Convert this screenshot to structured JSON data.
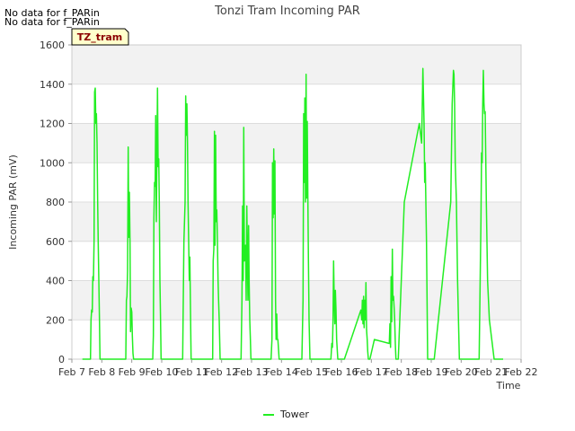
{
  "notes": [
    "No data for f_PARin",
    "No data for f_PARin"
  ],
  "badge": "TZ_tram",
  "chart_data": {
    "type": "line",
    "title": "Tonzi Tram Incoming PAR",
    "xlabel": "Time",
    "ylabel": "Incoming PAR (mV)",
    "xlim": [
      7,
      22
    ],
    "ylim": [
      0,
      1600
    ],
    "xticks": [
      7,
      8,
      9,
      10,
      11,
      12,
      13,
      14,
      15,
      16,
      17,
      18,
      19,
      20,
      21,
      22
    ],
    "xtick_labels": [
      "Feb 7",
      "Feb 8",
      "Feb 9",
      "Feb 10",
      "Feb 11",
      "Feb 12",
      "Feb 13",
      "Feb 14",
      "Feb 15",
      "Feb 16",
      "Feb 17",
      "Feb 18",
      "Feb 19",
      "Feb 20",
      "Feb 21",
      "Feb 22"
    ],
    "yticks": [
      0,
      200,
      400,
      600,
      800,
      1000,
      1200,
      1400,
      1600
    ],
    "grid": true,
    "legend_position": "bottom-center",
    "series": [
      {
        "name": "Tower",
        "color": "#22ee22",
        "x": [
          7.35,
          7.62,
          7.64,
          7.66,
          7.68,
          7.7,
          7.72,
          7.74,
          7.76,
          7.78,
          7.8,
          7.82,
          7.84,
          7.86,
          7.88,
          7.9,
          7.92,
          7.94,
          8.05,
          8.8,
          8.82,
          8.84,
          8.86,
          8.88,
          8.9,
          8.92,
          8.94,
          8.96,
          8.98,
          9.0,
          9.02,
          9.04,
          9.06,
          9.08,
          9.2,
          9.7,
          9.72,
          9.74,
          9.76,
          9.78,
          9.8,
          9.82,
          9.84,
          9.86,
          9.88,
          9.9,
          9.92,
          9.94,
          9.96,
          9.98,
          10.1,
          10.7,
          10.74,
          10.78,
          10.8,
          10.82,
          10.84,
          10.86,
          10.88,
          10.9,
          10.92,
          10.94,
          10.98,
          11.1,
          11.7,
          11.72,
          11.74,
          11.76,
          11.78,
          11.8,
          11.82,
          11.84,
          11.86,
          11.88,
          11.9,
          11.92,
          11.95,
          12.1,
          12.65,
          12.68,
          12.7,
          12.72,
          12.74,
          12.76,
          12.78,
          12.8,
          12.82,
          12.84,
          12.86,
          12.88,
          12.9,
          12.92,
          12.94,
          12.96,
          12.98,
          13.1,
          13.65,
          13.68,
          13.7,
          13.72,
          13.74,
          13.76,
          13.78,
          13.8,
          13.82,
          13.84,
          13.86,
          13.88,
          13.9,
          13.92,
          14.1,
          14.68,
          14.72,
          14.74,
          14.76,
          14.78,
          14.8,
          14.82,
          14.84,
          14.86,
          14.88,
          14.9,
          14.92,
          14.95,
          15.1,
          15.65,
          15.68,
          15.7,
          15.72,
          15.74,
          15.76,
          15.78,
          15.8,
          15.82,
          15.84,
          15.88,
          15.92,
          16.1,
          16.65,
          16.68,
          16.7,
          16.72,
          16.74,
          16.76,
          16.78,
          16.8,
          16.82,
          16.84,
          16.86,
          16.88,
          16.9,
          16.92,
          16.95,
          17.1,
          17.6,
          17.62,
          17.64,
          17.66,
          17.68,
          17.7,
          17.72,
          17.74,
          17.76,
          17.78,
          17.8,
          17.82,
          17.84,
          17.9,
          18.1,
          18.6,
          18.68,
          18.72,
          18.74,
          18.76,
          18.78,
          18.8,
          18.84,
          18.88,
          18.94,
          19.1,
          19.65,
          19.7,
          19.74,
          19.76,
          19.78,
          19.8,
          19.84,
          19.88,
          19.94,
          20.1,
          20.6,
          20.66,
          20.68,
          20.7,
          20.72,
          20.74,
          20.76,
          20.78,
          20.8,
          20.84,
          20.88,
          20.94,
          21.1,
          21.4
        ],
        "y": [
          0,
          0,
          200,
          250,
          240,
          420,
          400,
          600,
          1360,
          1380,
          1200,
          1250,
          1100,
          800,
          600,
          400,
          200,
          0,
          0,
          0,
          300,
          320,
          450,
          1080,
          620,
          850,
          600,
          140,
          260,
          240,
          120,
          30,
          0,
          0,
          0,
          0,
          120,
          720,
          900,
          880,
          1240,
          700,
          1050,
          1380,
          980,
          1020,
          800,
          400,
          200,
          0,
          0,
          0,
          600,
          800,
          1340,
          1140,
          1300,
          1100,
          800,
          600,
          400,
          520,
          0,
          0,
          0,
          500,
          560,
          1160,
          580,
          1140,
          700,
          760,
          600,
          400,
          300,
          200,
          0,
          0,
          0,
          300,
          780,
          400,
          1180,
          500,
          550,
          580,
          300,
          780,
          550,
          300,
          680,
          400,
          200,
          100,
          0,
          0,
          0,
          100,
          1000,
          720,
          1070,
          740,
          1010,
          300,
          100,
          230,
          100,
          100,
          50,
          0,
          0,
          0,
          300,
          1250,
          900,
          1330,
          800,
          1450,
          820,
          1210,
          800,
          500,
          200,
          0,
          0,
          0,
          80,
          60,
          200,
          500,
          300,
          180,
          350,
          250,
          100,
          0,
          0,
          0,
          250,
          200,
          300,
          180,
          320,
          160,
          300,
          200,
          390,
          150,
          100,
          40,
          0,
          0,
          0,
          100,
          80,
          180,
          60,
          420,
          190,
          560,
          300,
          320,
          260,
          200,
          80,
          0,
          0,
          0,
          800,
          1200,
          1100,
          1480,
          1350,
          1200,
          900,
          1000,
          600,
          0,
          0,
          0,
          800,
          1300,
          1470,
          1450,
          1300,
          1000,
          800,
          400,
          0,
          0,
          0,
          700,
          1050,
          1000,
          1300,
          1470,
          1300,
          1250,
          1260,
          800,
          400,
          200,
          0,
          0
        ]
      }
    ]
  }
}
